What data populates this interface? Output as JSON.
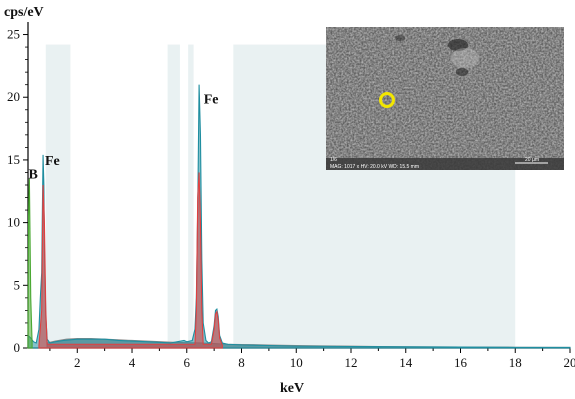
{
  "chart_data": {
    "type": "line",
    "title": "",
    "xlabel": "keV",
    "ylabel": "cps/eV",
    "xlim": [
      0.2,
      20
    ],
    "ylim": [
      0,
      26
    ],
    "x_ticks": [
      2,
      4,
      6,
      8,
      10,
      12,
      14,
      16,
      18,
      20
    ],
    "y_ticks": [
      0,
      5,
      10,
      15,
      20,
      25
    ],
    "grid": false,
    "legend": "none",
    "shaded_bands_keV": [
      [
        0.85,
        1.75
      ],
      [
        5.3,
        5.75
      ],
      [
        6.05,
        6.25
      ],
      [
        7.7,
        18.0
      ]
    ],
    "series": [
      {
        "color": "#1f8ea0",
        "x": [
          0.2,
          0.3,
          0.4,
          0.5,
          0.6,
          0.65,
          0.7,
          0.72,
          0.75,
          0.78,
          0.8,
          0.85,
          0.9,
          1.0,
          1.2,
          1.5,
          2.0,
          2.5,
          3.0,
          3.5,
          4.0,
          4.5,
          5.0,
          5.4,
          5.9,
          6.0,
          6.2,
          6.3,
          6.35,
          6.4,
          6.45,
          6.5,
          6.55,
          6.6,
          6.7,
          6.8,
          6.9,
          7.0,
          7.05,
          7.1,
          7.15,
          7.2,
          7.3,
          7.5,
          8.0,
          9.0,
          10.0,
          12.0,
          14.0,
          16.0,
          18.0,
          20.0
        ],
        "y": [
          1.0,
          0.8,
          0.5,
          0.4,
          1.5,
          4.0,
          6.0,
          10.0,
          15.4,
          13.0,
          8.0,
          2.5,
          0.7,
          0.4,
          0.5,
          0.6,
          0.7,
          0.7,
          0.7,
          0.6,
          0.55,
          0.5,
          0.45,
          0.4,
          0.6,
          0.5,
          0.6,
          1.5,
          4.0,
          11.0,
          21.0,
          17.0,
          7.0,
          2.0,
          0.6,
          0.4,
          0.5,
          1.8,
          3.0,
          3.1,
          2.5,
          1.0,
          0.4,
          0.3,
          0.25,
          0.2,
          0.15,
          0.12,
          0.1,
          0.08,
          0.05,
          0.05
        ]
      },
      {
        "color": "#e04040",
        "x": [
          0.6,
          0.7,
          0.75,
          0.8,
          0.85,
          0.9,
          6.3,
          6.35,
          6.4,
          6.45,
          6.5,
          6.55,
          6.6,
          6.9,
          7.0,
          7.05,
          7.1,
          7.15,
          7.2,
          7.3
        ],
        "y": [
          0.2,
          3.0,
          13.0,
          10.0,
          3.0,
          0.3,
          0.3,
          3.0,
          12.0,
          14.0,
          10.0,
          3.0,
          0.3,
          0.3,
          1.5,
          2.7,
          2.9,
          2.2,
          0.8,
          0.2
        ]
      },
      {
        "color": "#4aa832",
        "x": [
          0.2,
          0.22,
          0.25,
          0.3,
          0.35
        ],
        "y": [
          0.5,
          10.5,
          13.5,
          4.0,
          0.4
        ]
      },
      {
        "color": "#8a8a8a",
        "x": [
          0.9,
          1.2,
          1.6,
          2.0,
          2.5,
          3.0,
          3.5,
          4.0,
          4.5,
          5.0,
          5.5,
          6.0,
          6.5,
          7.0,
          7.5,
          8.0,
          9.0,
          10.0,
          11.0,
          12.0,
          13.0,
          14.0,
          16.0,
          18.0,
          20.0
        ],
        "y": [
          0.4,
          0.55,
          0.7,
          0.75,
          0.75,
          0.7,
          0.65,
          0.6,
          0.55,
          0.5,
          0.45,
          0.42,
          0.4,
          0.35,
          0.3,
          0.28,
          0.24,
          0.2,
          0.17,
          0.15,
          0.12,
          0.1,
          0.08,
          0.06,
          0.05
        ]
      }
    ],
    "annotations": [
      {
        "text": "Fe",
        "x": 6.62,
        "y": 19.5
      },
      {
        "text": "Fe",
        "x": 0.82,
        "y": 14.6
      },
      {
        "text": "B",
        "x": 0.22,
        "y": 13.5
      }
    ]
  },
  "inset": {
    "scale_bar_label": "20 µm",
    "info_text": "MAG: 1017 x  HV: 20.0 kV  WD: 15.5 mm",
    "corner_label": "1/6"
  }
}
